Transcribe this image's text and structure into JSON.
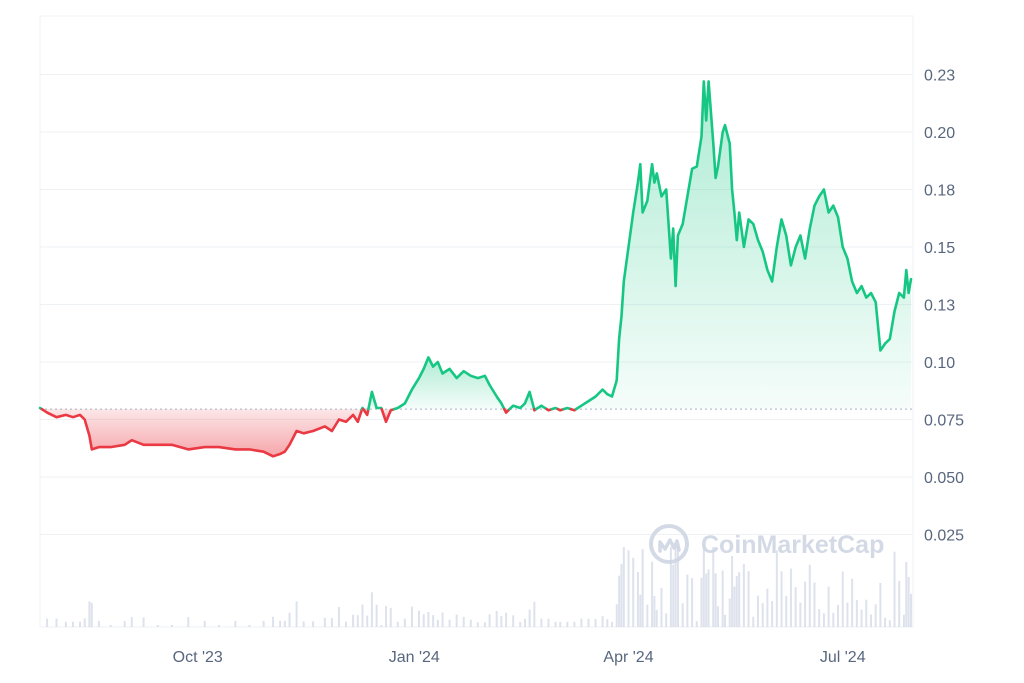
{
  "watermark": {
    "text": "CoinMarketCap",
    "icon": "coinmarketcap-logo-icon"
  },
  "colors": {
    "up": "#16c784",
    "down": "#ea3943",
    "up_fill": "#16c784",
    "down_fill": "#ea3943",
    "grid": "#eff2f5",
    "baseline": "#a6b0c3",
    "volume": "#cfd6e4",
    "tick_text": "#58667e",
    "watermark": "#cfd6e4"
  },
  "chart_data": {
    "type": "area",
    "ylim": [
      0,
      0.25
    ],
    "y_ticks": [
      {
        "value": 0.025,
        "label": "0.025"
      },
      {
        "value": 0.05,
        "label": "0.050"
      },
      {
        "value": 0.075,
        "label": "0.075"
      },
      {
        "value": 0.1,
        "label": "0.10"
      },
      {
        "value": 0.125,
        "label": "0.13"
      },
      {
        "value": 0.15,
        "label": "0.15"
      },
      {
        "value": 0.175,
        "label": "0.18"
      },
      {
        "value": 0.2,
        "label": "0.20"
      },
      {
        "value": 0.225,
        "label": "0.23"
      }
    ],
    "x_range": [
      "2023-07-26",
      "2024-07-30"
    ],
    "x_ticks": [
      {
        "date": "2023-10-01",
        "label": "Oct '23"
      },
      {
        "date": "2024-01-01",
        "label": "Jan '24"
      },
      {
        "date": "2024-04-01",
        "label": "Apr '24"
      },
      {
        "date": "2024-07-01",
        "label": "Jul '24"
      }
    ],
    "baseline": 0.0795,
    "series": [
      {
        "points": [
          [
            "2023-07-26",
            0.08
          ],
          [
            "2023-07-29",
            0.078
          ],
          [
            "2023-08-02",
            0.076
          ],
          [
            "2023-08-06",
            0.077
          ],
          [
            "2023-08-09",
            0.076
          ],
          [
            "2023-08-12",
            0.077
          ],
          [
            "2023-08-14",
            0.075
          ],
          [
            "2023-08-16",
            0.068
          ],
          [
            "2023-08-17",
            0.062
          ],
          [
            "2023-08-20",
            0.063
          ],
          [
            "2023-08-25",
            0.063
          ],
          [
            "2023-08-31",
            0.064
          ],
          [
            "2023-09-03",
            0.066
          ],
          [
            "2023-09-08",
            0.064
          ],
          [
            "2023-09-14",
            0.064
          ],
          [
            "2023-09-20",
            0.064
          ],
          [
            "2023-09-27",
            0.062
          ],
          [
            "2023-10-04",
            0.063
          ],
          [
            "2023-10-10",
            0.063
          ],
          [
            "2023-10-17",
            0.062
          ],
          [
            "2023-10-23",
            0.062
          ],
          [
            "2023-10-29",
            0.061
          ],
          [
            "2023-11-02",
            0.059
          ],
          [
            "2023-11-05",
            0.06
          ],
          [
            "2023-11-07",
            0.061
          ],
          [
            "2023-11-09",
            0.064
          ],
          [
            "2023-11-12",
            0.07
          ],
          [
            "2023-11-15",
            0.069
          ],
          [
            "2023-11-19",
            0.07
          ],
          [
            "2023-11-24",
            0.072
          ],
          [
            "2023-11-27",
            0.07
          ],
          [
            "2023-11-30",
            0.075
          ],
          [
            "2023-12-03",
            0.074
          ],
          [
            "2023-12-06",
            0.077
          ],
          [
            "2023-12-08",
            0.074
          ],
          [
            "2023-12-10",
            0.08
          ],
          [
            "2023-12-12",
            0.077
          ],
          [
            "2023-12-14",
            0.087
          ],
          [
            "2023-12-16",
            0.08
          ],
          [
            "2023-12-18",
            0.08
          ],
          [
            "2023-12-20",
            0.074
          ],
          [
            "2023-12-22",
            0.079
          ],
          [
            "2023-12-25",
            0.08
          ],
          [
            "2023-12-28",
            0.082
          ],
          [
            "2023-12-31",
            0.088
          ],
          [
            "2024-01-03",
            0.093
          ],
          [
            "2024-01-05",
            0.097
          ],
          [
            "2024-01-07",
            0.102
          ],
          [
            "2024-01-09",
            0.098
          ],
          [
            "2024-01-11",
            0.1
          ],
          [
            "2024-01-13",
            0.095
          ],
          [
            "2024-01-16",
            0.097
          ],
          [
            "2024-01-19",
            0.093
          ],
          [
            "2024-01-22",
            0.096
          ],
          [
            "2024-01-25",
            0.094
          ],
          [
            "2024-01-28",
            0.093
          ],
          [
            "2024-01-31",
            0.094
          ],
          [
            "2024-02-02",
            0.09
          ],
          [
            "2024-02-05",
            0.085
          ],
          [
            "2024-02-07",
            0.082
          ],
          [
            "2024-02-09",
            0.078
          ],
          [
            "2024-02-12",
            0.081
          ],
          [
            "2024-02-15",
            0.08
          ],
          [
            "2024-02-17",
            0.082
          ],
          [
            "2024-02-19",
            0.087
          ],
          [
            "2024-02-21",
            0.079
          ],
          [
            "2024-02-24",
            0.081
          ],
          [
            "2024-02-27",
            0.079
          ],
          [
            "2024-03-01",
            0.08
          ],
          [
            "2024-03-03",
            0.079
          ],
          [
            "2024-03-06",
            0.08
          ],
          [
            "2024-03-09",
            0.079
          ],
          [
            "2024-03-12",
            0.081
          ],
          [
            "2024-03-15",
            0.083
          ],
          [
            "2024-03-18",
            0.085
          ],
          [
            "2024-03-21",
            0.088
          ],
          [
            "2024-03-23",
            0.086
          ],
          [
            "2024-03-25",
            0.085
          ],
          [
            "2024-03-27",
            0.092
          ],
          [
            "2024-03-28",
            0.11
          ],
          [
            "2024-03-29",
            0.12
          ],
          [
            "2024-03-30",
            0.135
          ],
          [
            "2024-04-01",
            0.15
          ],
          [
            "2024-04-03",
            0.165
          ],
          [
            "2024-04-05",
            0.178
          ],
          [
            "2024-04-06",
            0.186
          ],
          [
            "2024-04-07",
            0.165
          ],
          [
            "2024-04-09",
            0.17
          ],
          [
            "2024-04-11",
            0.186
          ],
          [
            "2024-04-12",
            0.178
          ],
          [
            "2024-04-13",
            0.182
          ],
          [
            "2024-04-15",
            0.172
          ],
          [
            "2024-04-17",
            0.175
          ],
          [
            "2024-04-19",
            0.145
          ],
          [
            "2024-04-20",
            0.158
          ],
          [
            "2024-04-21",
            0.133
          ],
          [
            "2024-04-22",
            0.155
          ],
          [
            "2024-04-24",
            0.16
          ],
          [
            "2024-04-26",
            0.172
          ],
          [
            "2024-04-28",
            0.184
          ],
          [
            "2024-04-30",
            0.185
          ],
          [
            "2024-05-02",
            0.198
          ],
          [
            "2024-05-03",
            0.222
          ],
          [
            "2024-05-04",
            0.205
          ],
          [
            "2024-05-05",
            0.222
          ],
          [
            "2024-05-07",
            0.195
          ],
          [
            "2024-05-08",
            0.18
          ],
          [
            "2024-05-09",
            0.185
          ],
          [
            "2024-05-11",
            0.2
          ],
          [
            "2024-05-12",
            0.203
          ],
          [
            "2024-05-14",
            0.195
          ],
          [
            "2024-05-15",
            0.175
          ],
          [
            "2024-05-16",
            0.165
          ],
          [
            "2024-05-17",
            0.153
          ],
          [
            "2024-05-18",
            0.165
          ],
          [
            "2024-05-20",
            0.15
          ],
          [
            "2024-05-22",
            0.162
          ],
          [
            "2024-05-24",
            0.16
          ],
          [
            "2024-05-26",
            0.153
          ],
          [
            "2024-05-28",
            0.148
          ],
          [
            "2024-05-30",
            0.14
          ],
          [
            "2024-06-01",
            0.135
          ],
          [
            "2024-06-03",
            0.15
          ],
          [
            "2024-06-05",
            0.162
          ],
          [
            "2024-06-07",
            0.155
          ],
          [
            "2024-06-09",
            0.142
          ],
          [
            "2024-06-11",
            0.15
          ],
          [
            "2024-06-13",
            0.155
          ],
          [
            "2024-06-15",
            0.145
          ],
          [
            "2024-06-17",
            0.158
          ],
          [
            "2024-06-19",
            0.168
          ],
          [
            "2024-06-21",
            0.172
          ],
          [
            "2024-06-23",
            0.175
          ],
          [
            "2024-06-25",
            0.165
          ],
          [
            "2024-06-27",
            0.168
          ],
          [
            "2024-06-29",
            0.163
          ],
          [
            "2024-07-01",
            0.15
          ],
          [
            "2024-07-03",
            0.145
          ],
          [
            "2024-07-05",
            0.135
          ],
          [
            "2024-07-07",
            0.13
          ],
          [
            "2024-07-09",
            0.133
          ],
          [
            "2024-07-11",
            0.128
          ],
          [
            "2024-07-13",
            0.13
          ],
          [
            "2024-07-15",
            0.126
          ],
          [
            "2024-07-17",
            0.105
          ],
          [
            "2024-07-19",
            0.108
          ],
          [
            "2024-07-21",
            0.11
          ],
          [
            "2024-07-23",
            0.122
          ],
          [
            "2024-07-25",
            0.13
          ],
          [
            "2024-07-27",
            0.128
          ],
          [
            "2024-07-28",
            0.14
          ],
          [
            "2024-07-29",
            0.13
          ],
          [
            "2024-07-30",
            0.136
          ]
        ]
      }
    ]
  }
}
